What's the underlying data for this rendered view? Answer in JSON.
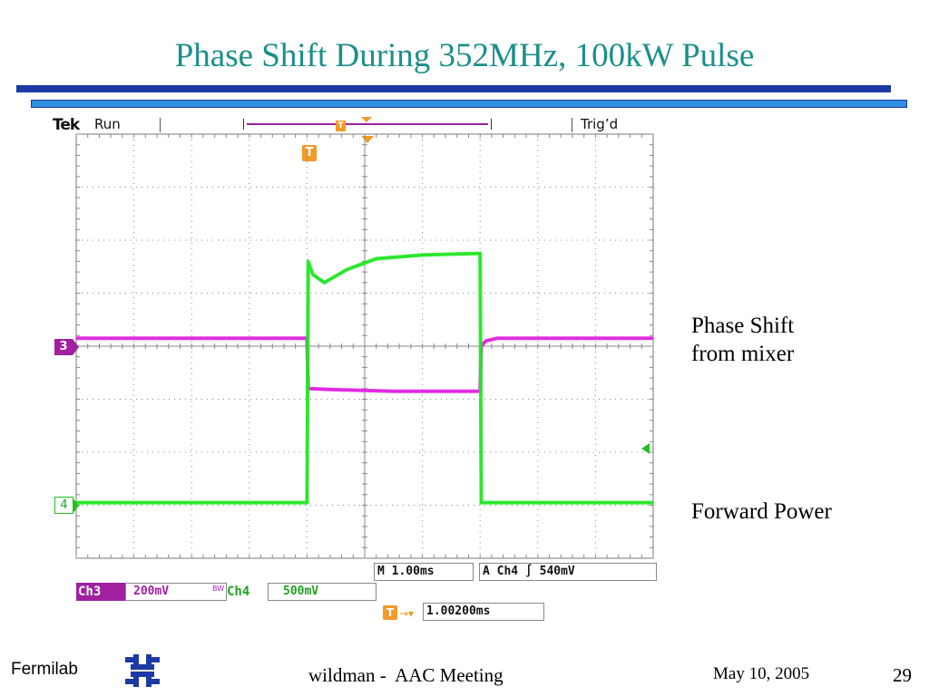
{
  "slide": {
    "title": "Phase Shift During 352MHz, 100kW Pulse",
    "footer_org": "Fermilab",
    "footer_center": "wildman -  AAC Meeting",
    "footer_date": "May 10, 2005",
    "page_number": "29"
  },
  "scope": {
    "brand": "Tek",
    "acq_state": "Run",
    "trigger_state": "Trig’d",
    "trigger_marker": "T",
    "ch3_marker": "3",
    "ch4_marker": "4",
    "timebase": "M 1.00ms",
    "trigger_info": "A  Ch4  ∫  540mV",
    "ch3_name": "Ch3",
    "ch3_scale": "200mV",
    "bw_mark": "BW",
    "ch4_name": "Ch4",
    "ch4_scale": "500mV",
    "trigger_position": "1.00200ms",
    "colors": {
      "ch3": "#e020e0",
      "ch4": "#22e622",
      "trigger": "#f39a27",
      "grid": "#777777"
    }
  },
  "annotations": {
    "phase_label_line1": "Phase Shift",
    "phase_label_line2": "from mixer",
    "power_label": "Forward Power"
  },
  "chart_data": {
    "type": "line",
    "xlabel": "",
    "ylabel": "",
    "x_units": "ms",
    "x_divisions": 10,
    "y_divisions": 8,
    "grid": true,
    "xlim": [
      0,
      10
    ],
    "ylim": [
      -4,
      4
    ],
    "series": [
      {
        "name": "Ch3",
        "color": "#e020e0",
        "x": [
          0,
          4.0,
          4.02,
          4.5,
          5.5,
          7.0,
          7.02,
          7.1,
          7.3,
          10
        ],
        "values": [
          0.15,
          0.15,
          -0.8,
          -0.82,
          -0.85,
          -0.85,
          0.0,
          0.1,
          0.15,
          0.15
        ]
      },
      {
        "name": "Ch4",
        "color": "#22e622",
        "x": [
          0,
          4.0,
          4.02,
          4.1,
          4.3,
          4.7,
          5.2,
          6.0,
          7.0,
          7.02,
          10
        ],
        "values": [
          -2.95,
          -2.95,
          1.6,
          1.35,
          1.2,
          1.45,
          1.65,
          1.72,
          1.75,
          -2.95,
          -2.95
        ]
      }
    ]
  }
}
